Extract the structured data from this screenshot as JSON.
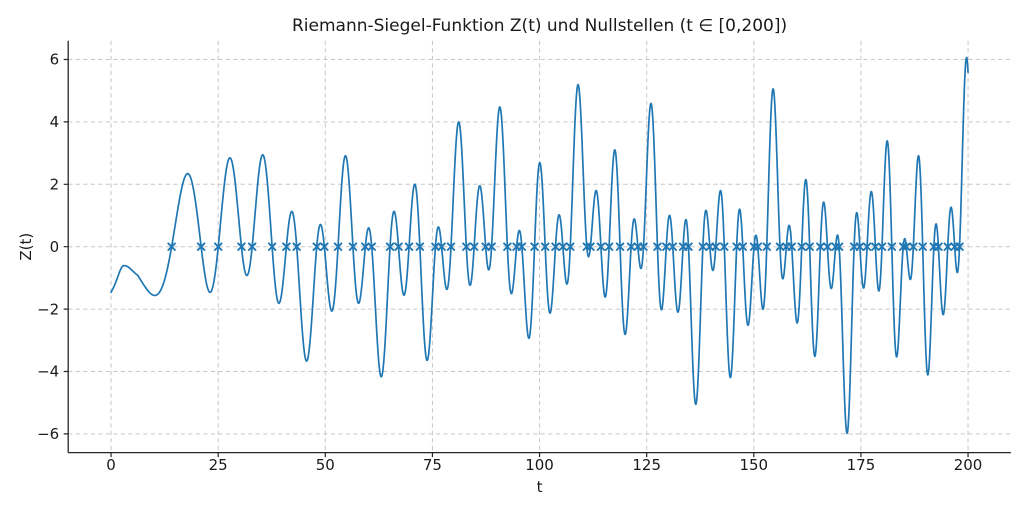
{
  "chart_data": {
    "type": "line",
    "title": "Riemann-Siegel-Funktion Z(t) und Nullstellen (t ∈ [0,200])",
    "xlabel": "t",
    "ylabel": "Z(t)",
    "xlim": [
      -10,
      210
    ],
    "ylim": [
      -6.6,
      6.6
    ],
    "x_ticks": [
      0,
      25,
      50,
      75,
      100,
      125,
      150,
      175,
      200
    ],
    "y_ticks": [
      -6,
      -4,
      -2,
      0,
      2,
      4,
      6
    ],
    "grid": true,
    "grid_style": "dashed",
    "legend": "none",
    "colors": {
      "line": "#1f77b4",
      "marker": "#1f77b4",
      "grid": "#c7c7c7",
      "spine": "#262626",
      "text": "#1a1a1a",
      "background": "#ffffff"
    },
    "series": [
      {
        "name": "Z(t)",
        "kind": "function-curve",
        "function": "riemann_siegel_Z",
        "t_range": [
          0,
          200
        ],
        "sample_step": 0.05,
        "small_t_anchors": {
          "t": [
            0,
            0.7,
            1.4,
            2.1,
            2.7,
            3.4,
            4.2,
            5.0,
            5.7,
            6.2832
          ],
          "z": [
            -1.46,
            -1.27,
            -1.03,
            -0.77,
            -0.625,
            -0.615,
            -0.67,
            -0.77,
            -0.86,
            -0.922
          ]
        }
      },
      {
        "name": "Nullstellen",
        "kind": "scatter",
        "marker": "x",
        "y_value": 0,
        "x": [
          14.135,
          21.022,
          25.011,
          30.425,
          32.935,
          37.586,
          40.919,
          43.327,
          48.005,
          49.774,
          52.97,
          56.446,
          59.347,
          60.832,
          65.113,
          67.08,
          69.546,
          72.067,
          75.705,
          77.145,
          79.337,
          82.91,
          84.735,
          87.425,
          88.809,
          92.492,
          94.651,
          95.871,
          98.831,
          101.318,
          103.726,
          105.447,
          107.169,
          111.03,
          111.875,
          114.32,
          116.227,
          118.791,
          121.37,
          122.947,
          124.257,
          127.517,
          129.579,
          131.088,
          133.498,
          134.757,
          138.116,
          139.736,
          141.124,
          143.112,
          146.001,
          147.423,
          150.054,
          150.925,
          153.025,
          156.113,
          157.598,
          158.85,
          161.189,
          163.031,
          165.537,
          167.184,
          169.095,
          169.912,
          173.412,
          174.754,
          176.441,
          178.377,
          179.916,
          182.207,
          184.874,
          185.599,
          187.229,
          189.416,
          192.027,
          193.08,
          195.265,
          196.876,
          198.015
        ]
      }
    ]
  }
}
